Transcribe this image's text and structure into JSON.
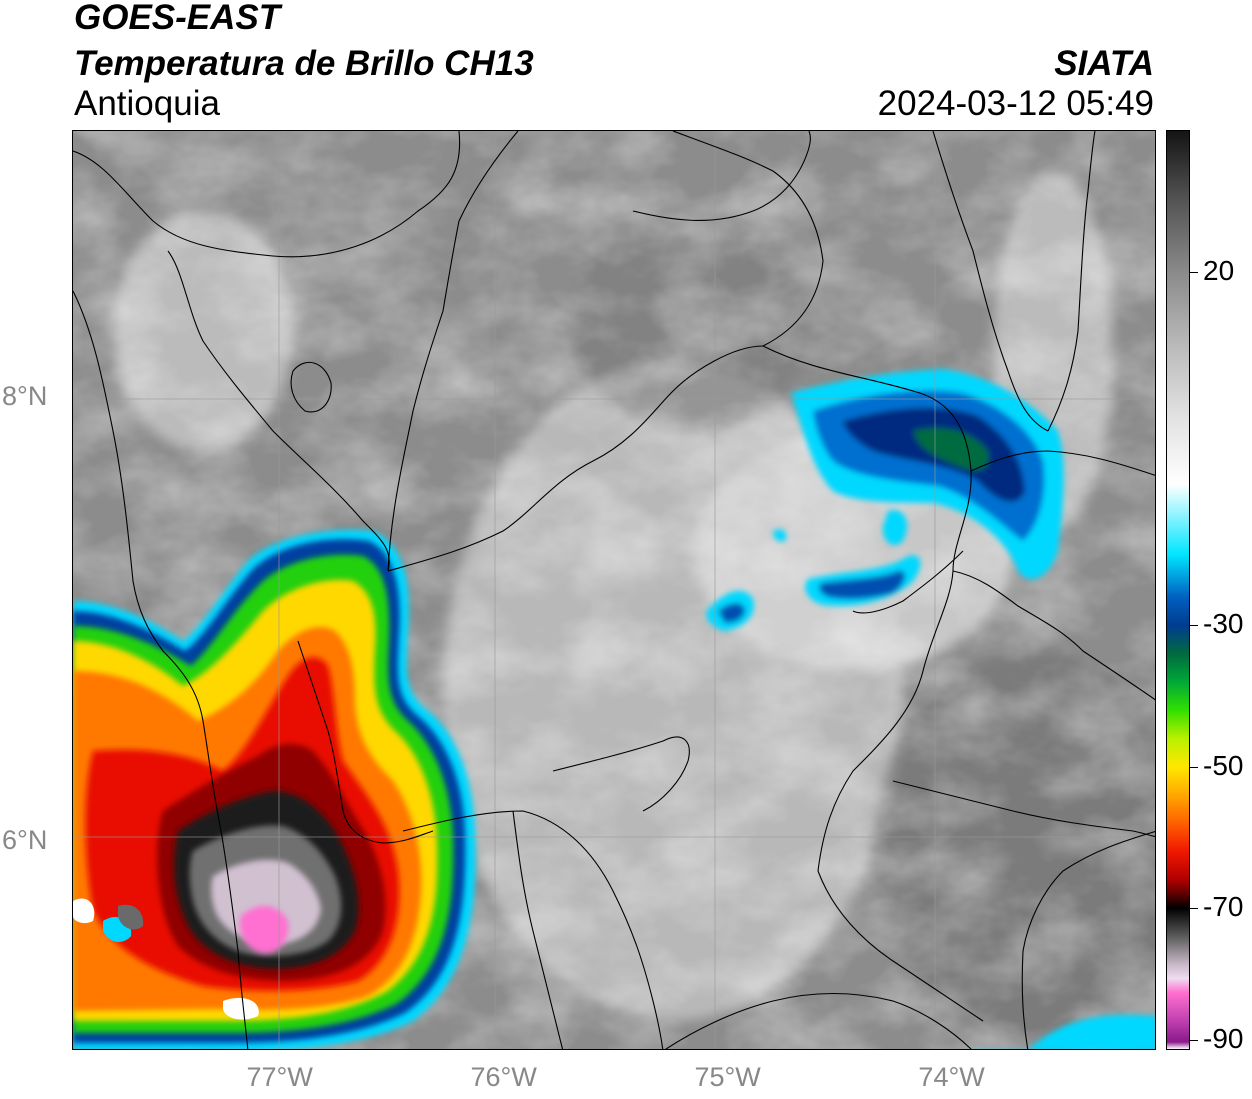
{
  "header": {
    "title_line1": "GOES-EAST",
    "title_line2": "Temperatura de Brillo CH13",
    "region": "Antioquia",
    "agency": "SIATA",
    "timestamp": "2024-03-12 05:49"
  },
  "map": {
    "lon_range": [
      -77.94,
      -73.1
    ],
    "lat_range": [
      5.06,
      9.2
    ],
    "lat_labels": [
      {
        "lat": 8,
        "text": "8°N"
      },
      {
        "lat": 6,
        "text": "6°N"
      }
    ],
    "lon_labels": [
      {
        "lon": -77,
        "text": "77°W"
      },
      {
        "lon": -76,
        "text": "76°W"
      },
      {
        "lon": -75,
        "text": "75°W"
      },
      {
        "lon": -74,
        "text": "74°W"
      }
    ],
    "gridlines": true,
    "background_color": "#8c8c8c"
  },
  "colorbar": {
    "vmin": -90,
    "vmax": 40,
    "ticks": [
      {
        "value": 20,
        "text": "20"
      },
      {
        "value": -30,
        "text": "-30"
      },
      {
        "value": -50,
        "text": "-50"
      },
      {
        "value": -70,
        "text": "-70"
      },
      {
        "value": -90,
        "text": "-90"
      }
    ],
    "stops": [
      {
        "value": 40,
        "color": "#141414"
      },
      {
        "value": 30,
        "color": "#555555"
      },
      {
        "value": 20,
        "color": "#8a8a8a"
      },
      {
        "value": 10,
        "color": "#b8b8b8"
      },
      {
        "value": 0,
        "color": "#e0e0e0"
      },
      {
        "value": -10,
        "color": "#ffffff"
      },
      {
        "value": -20,
        "color": "#00e5ff"
      },
      {
        "value": -26,
        "color": "#0060c0"
      },
      {
        "value": -30,
        "color": "#003c90"
      },
      {
        "value": -34,
        "color": "#006a40"
      },
      {
        "value": -38,
        "color": "#00a838"
      },
      {
        "value": -42,
        "color": "#30e000"
      },
      {
        "value": -46,
        "color": "#b8f000"
      },
      {
        "value": -50,
        "color": "#ffe800"
      },
      {
        "value": -54,
        "color": "#ffa800"
      },
      {
        "value": -58,
        "color": "#ff6000"
      },
      {
        "value": -62,
        "color": "#f01800"
      },
      {
        "value": -66,
        "color": "#b00000"
      },
      {
        "value": -68,
        "color": "#600000"
      },
      {
        "value": -70,
        "color": "#000000"
      },
      {
        "value": -74,
        "color": "#5a5a5a"
      },
      {
        "value": -78,
        "color": "#c8b8c8"
      },
      {
        "value": -80,
        "color": "#f0dcf0"
      },
      {
        "value": -82,
        "color": "#ff70d0"
      },
      {
        "value": -86,
        "color": "#c040b0"
      },
      {
        "value": -89,
        "color": "#8a1a8a"
      },
      {
        "value": -90,
        "color": "#ffffff"
      }
    ]
  },
  "features": {
    "cloud_systems": [
      {
        "name": "western convective system",
        "lon": -77.0,
        "lat": 5.95,
        "min_temp": -85
      },
      {
        "name": "eastern cloud cluster",
        "lon": -74.0,
        "lat": 7.8,
        "min_temp": -34
      },
      {
        "name": "small cell central",
        "lon": -74.95,
        "lat": 7.1,
        "min_temp": -24
      }
    ]
  }
}
